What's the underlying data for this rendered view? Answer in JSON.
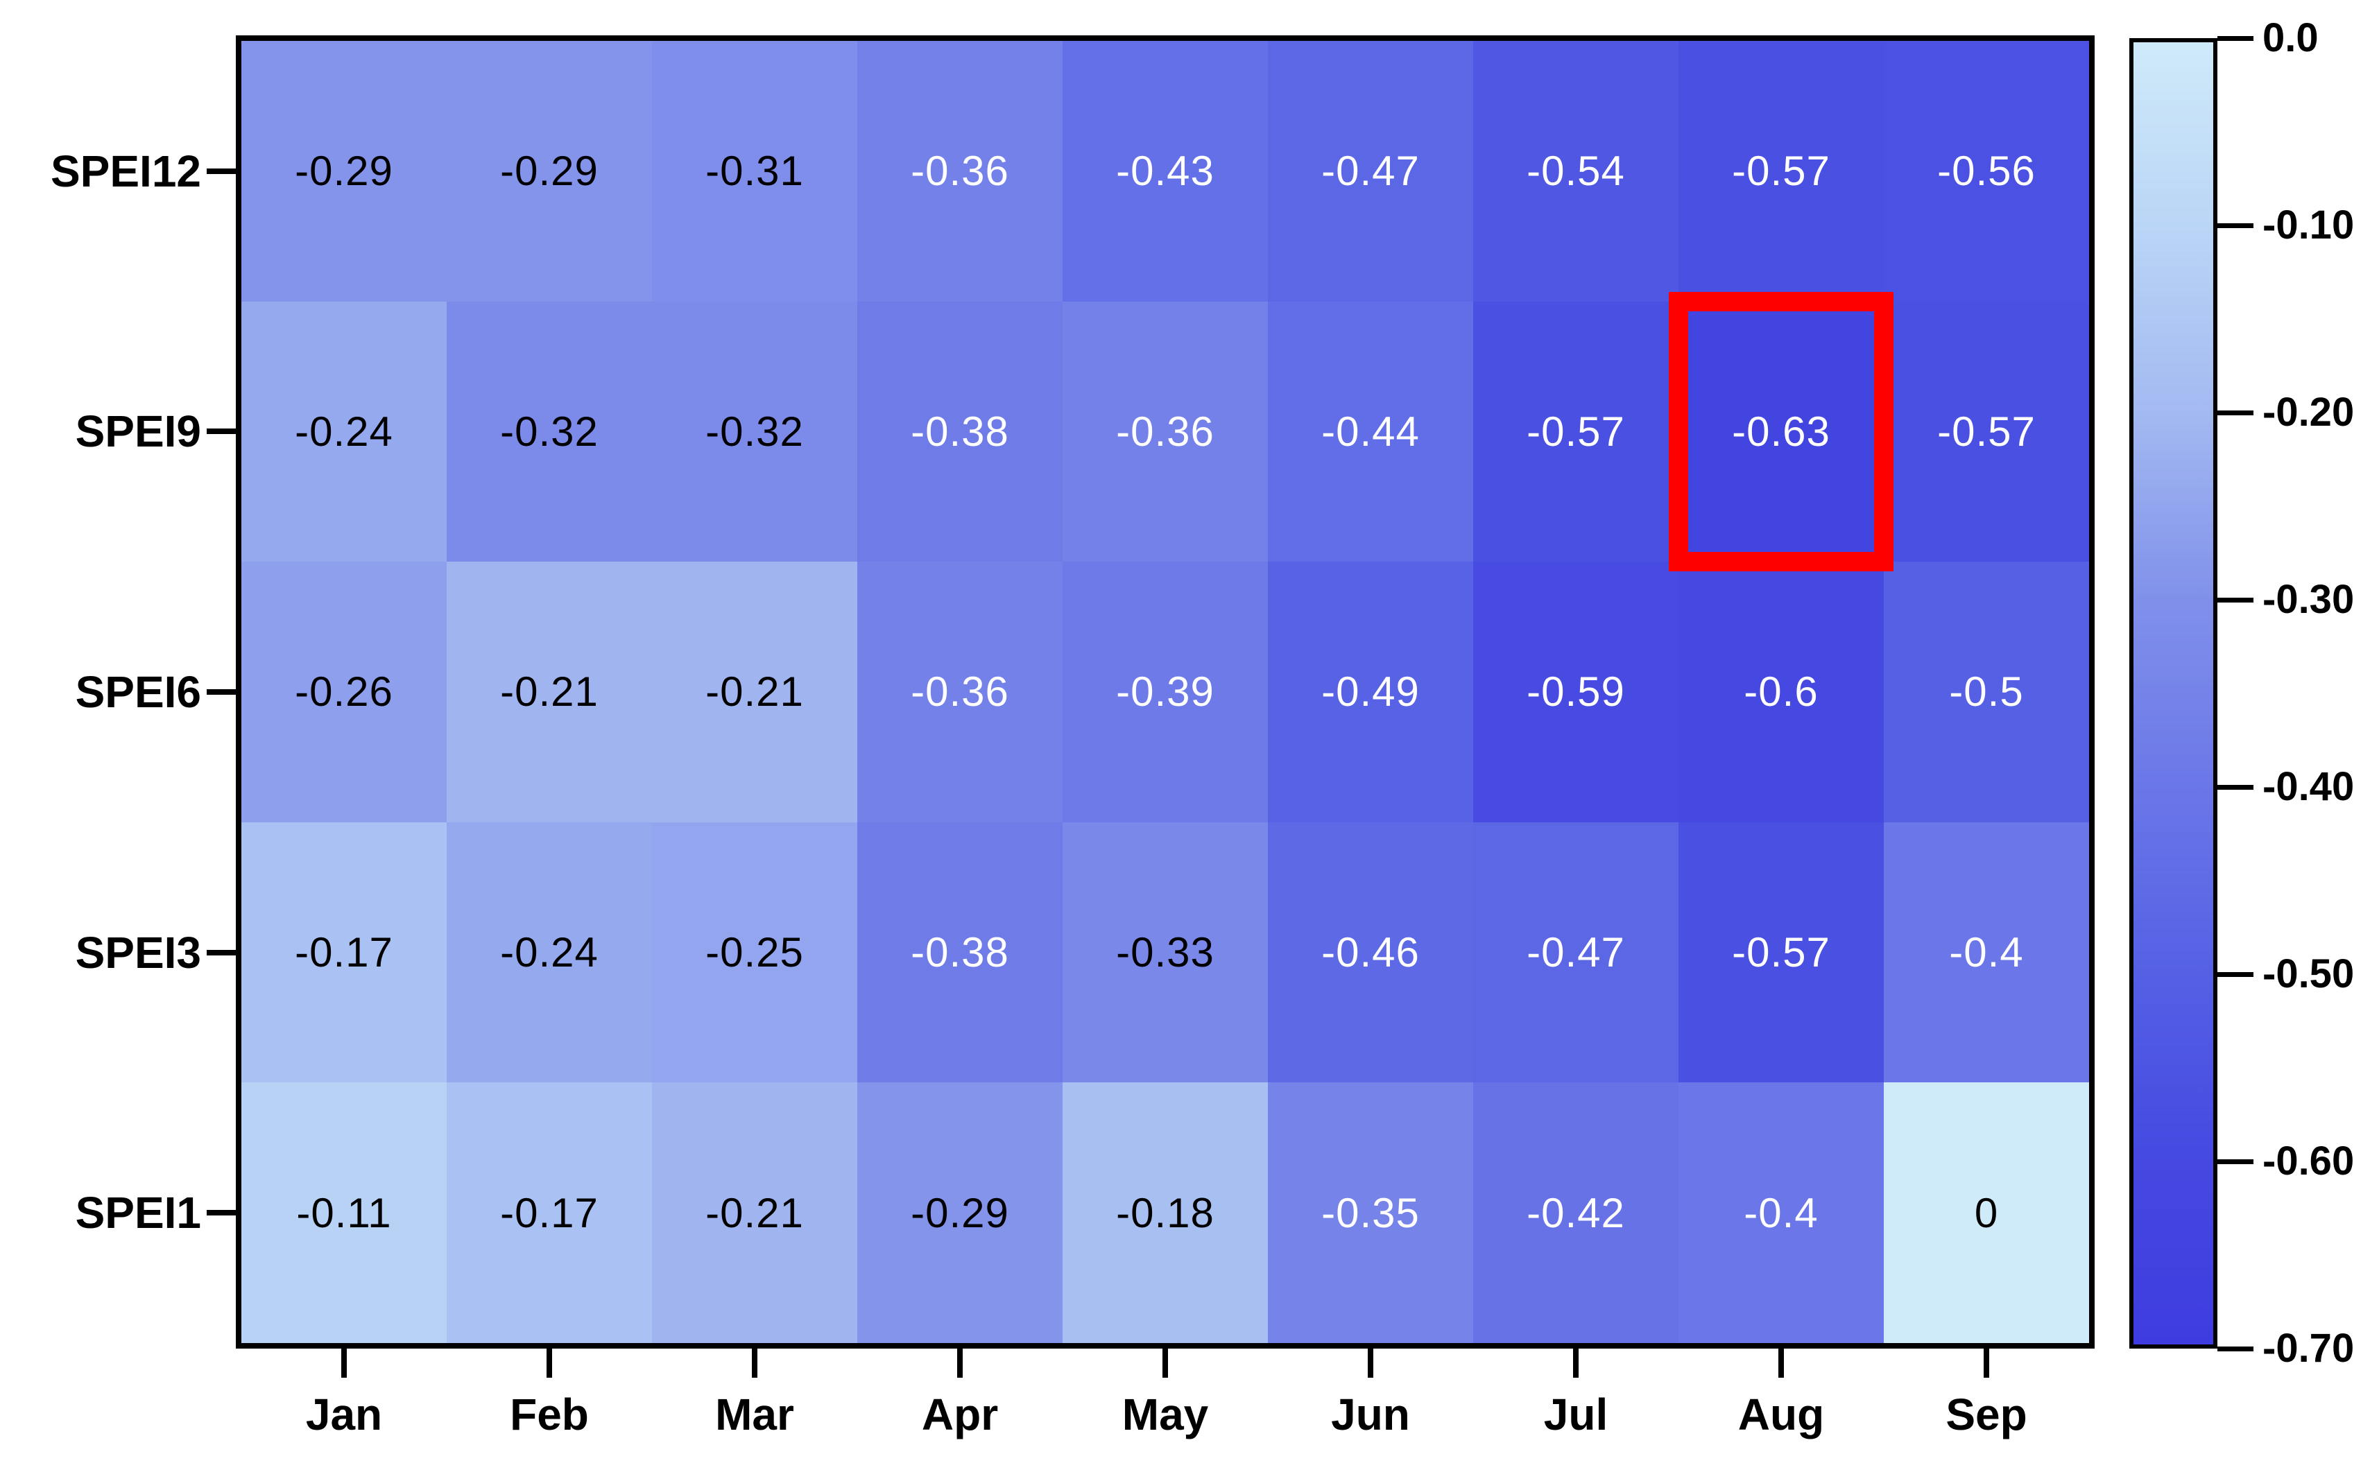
{
  "chart_data": {
    "type": "heatmap",
    "title": "",
    "x_categories": [
      "Jan",
      "Feb",
      "Mar",
      "Apr",
      "May",
      "Jun",
      "Jul",
      "Aug",
      "Sep"
    ],
    "y_categories": [
      "SPEI12",
      "SPEI9",
      "SPEI6",
      "SPEI3",
      "SPEI1"
    ],
    "rows": [
      {
        "label": "SPEI12",
        "values": [
          -0.29,
          -0.29,
          -0.31,
          -0.36,
          -0.43,
          -0.47,
          -0.54,
          -0.57,
          -0.56
        ]
      },
      {
        "label": "SPEI9",
        "values": [
          -0.24,
          -0.32,
          -0.32,
          -0.38,
          -0.36,
          -0.44,
          -0.57,
          -0.63,
          -0.57
        ]
      },
      {
        "label": "SPEI6",
        "values": [
          -0.26,
          -0.21,
          -0.21,
          -0.36,
          -0.39,
          -0.49,
          -0.59,
          -0.6,
          -0.5
        ]
      },
      {
        "label": "SPEI3",
        "values": [
          -0.17,
          -0.24,
          -0.25,
          -0.38,
          -0.33,
          -0.46,
          -0.47,
          -0.57,
          -0.4
        ]
      },
      {
        "label": "SPEI1",
        "values": [
          -0.11,
          -0.17,
          -0.21,
          -0.29,
          -0.18,
          -0.35,
          -0.42,
          -0.4,
          0
        ]
      }
    ],
    "colorbar": {
      "min": -0.7,
      "max": 0.0,
      "tick_labels": [
        "0.0",
        "-0.10",
        "-0.20",
        "-0.30",
        "-0.40",
        "-0.50",
        "-0.60",
        "-0.70"
      ],
      "legend_position": "right",
      "color_stops": [
        {
          "value": 0.0,
          "color": "#cfeaf9"
        },
        {
          "value": -0.1,
          "color": "#bad5f6"
        },
        {
          "value": -0.2,
          "color": "#a3b9f1"
        },
        {
          "value": -0.3,
          "color": "#8090ea"
        },
        {
          "value": -0.4,
          "color": "#6b77e8"
        },
        {
          "value": -0.5,
          "color": "#5560e5"
        },
        {
          "value": -0.6,
          "color": "#4549e1"
        },
        {
          "value": -0.7,
          "color": "#3e3ce0"
        }
      ]
    },
    "highlight": {
      "row": "SPEI9",
      "column": "Aug",
      "value": -0.63,
      "box_color": "#ff0000"
    },
    "grid": false,
    "styles": {
      "cell_text_dark": "#000000",
      "cell_text_light": "#ffffff",
      "white_text_threshold": -0.35,
      "axis_color": "#000000",
      "background": "#ffffff"
    }
  }
}
